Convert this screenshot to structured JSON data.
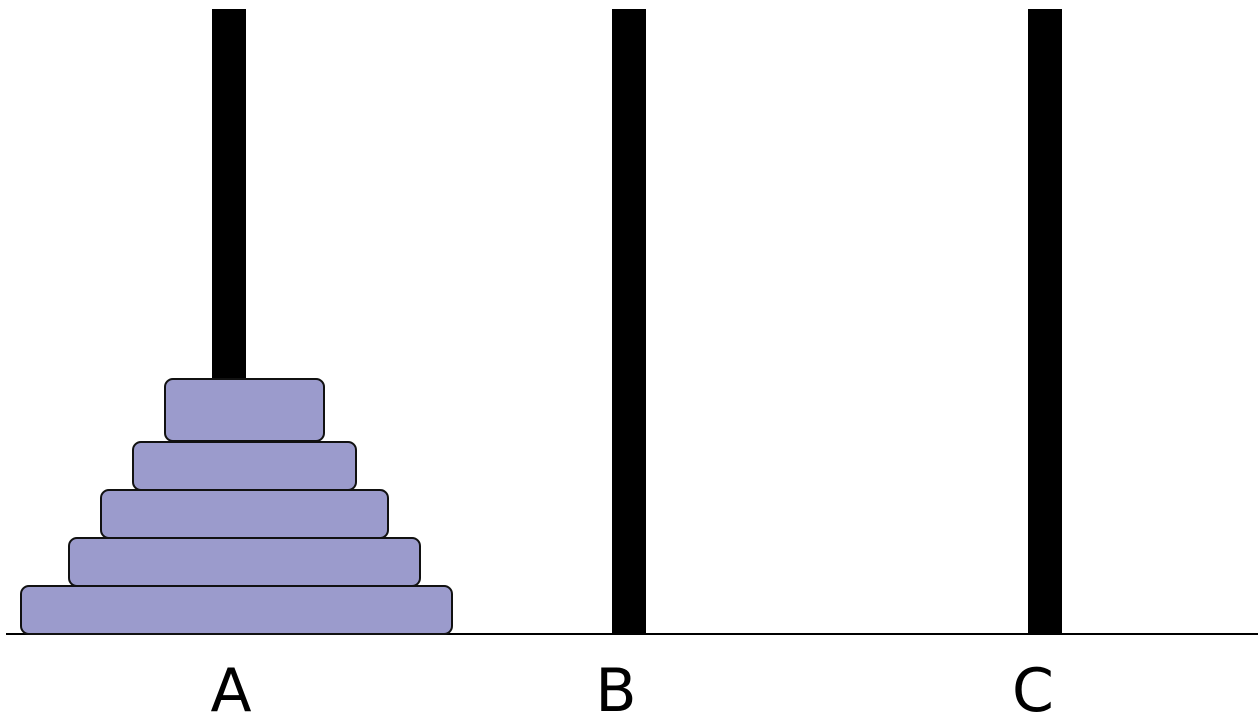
{
  "pegs": [
    {
      "label": "A"
    },
    {
      "label": "B"
    },
    {
      "label": "C"
    }
  ],
  "disks_on_peg_A": 5,
  "colors": {
    "disk_fill": "#9b9bcc",
    "peg": "#000000",
    "background": "#ffffff"
  }
}
